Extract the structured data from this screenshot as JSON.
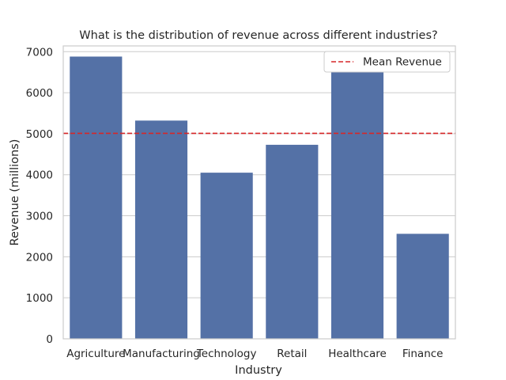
{
  "chart_data": {
    "type": "bar",
    "title": "What is the distribution of revenue across different industries?",
    "xlabel": "Industry",
    "ylabel": "Revenue (millions)",
    "categories": [
      "Agriculture",
      "Manufacturing",
      "Technology",
      "Retail",
      "Healthcare",
      "Finance"
    ],
    "values": [
      6880,
      5320,
      4050,
      4730,
      6510,
      2560
    ],
    "ylim": [
      0,
      7140
    ],
    "yticks": [
      0,
      1000,
      2000,
      3000,
      4000,
      5000,
      6000,
      7000
    ],
    "grid": "horizontal",
    "reference_lines": [
      {
        "name": "Mean Revenue",
        "value": 5008,
        "style": "dashed",
        "color": "#d62728"
      }
    ],
    "legend": {
      "position": "top-right",
      "entries": [
        "Mean Revenue"
      ]
    },
    "colors": {
      "bar": "#5471a6",
      "mean_line": "#d62728",
      "grid": "#cccccc",
      "axes": "#cccccc"
    }
  }
}
